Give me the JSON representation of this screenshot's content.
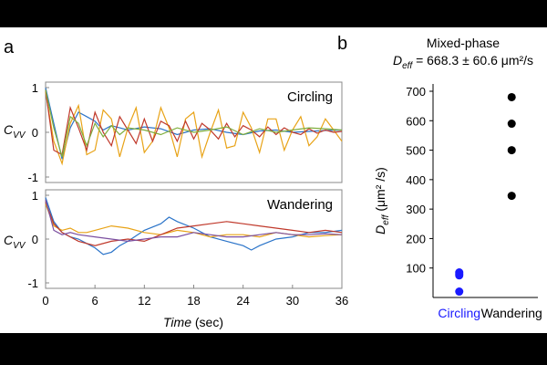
{
  "panels": {
    "a": {
      "label": "a"
    },
    "b": {
      "label": "b"
    }
  },
  "chart_data": [
    {
      "id": "circling",
      "type": "line",
      "title": "",
      "annotation": "Circling",
      "ylabel": "C",
      "ylabel_sub": "VV",
      "xlim": [
        0,
        36
      ],
      "ylim": [
        -1,
        1
      ],
      "yticks": [
        1,
        0,
        -1
      ],
      "series": [
        {
          "name": "blue",
          "color": "#2b74c9",
          "x": [
            0,
            1,
            2,
            3,
            4,
            5,
            6,
            7,
            8,
            9,
            10,
            12,
            14,
            16,
            18,
            20,
            22,
            24,
            26,
            28,
            30,
            32,
            34,
            36
          ],
          "y": [
            1,
            0.2,
            -0.6,
            0.1,
            0.45,
            0.35,
            0.25,
            0.05,
            0.15,
            0.1,
            0.05,
            0.12,
            0.08,
            -0.05,
            0.05,
            0.08,
            0.0,
            -0.05,
            0.03,
            0.05,
            0.0,
            0.02,
            0.04,
            0.05
          ]
        },
        {
          "name": "orange",
          "color": "#e8a317",
          "x": [
            0,
            1,
            2,
            3,
            4,
            5,
            6,
            7,
            8,
            9,
            10,
            11,
            12,
            13,
            14,
            15,
            16,
            17,
            18,
            19,
            20,
            21,
            22,
            23,
            24,
            25,
            26,
            27,
            28,
            29,
            30,
            31,
            32,
            33,
            34,
            35,
            36
          ],
          "y": [
            0.9,
            -0.2,
            -0.7,
            0.2,
            0.6,
            -0.5,
            -0.4,
            0.5,
            0.3,
            -0.55,
            0.1,
            0.55,
            -0.45,
            -0.2,
            0.55,
            0.1,
            -0.55,
            0.3,
            0.45,
            -0.55,
            0.0,
            0.5,
            -0.35,
            -0.3,
            0.45,
            0.1,
            -0.45,
            0.3,
            0.3,
            -0.4,
            0.05,
            0.35,
            -0.3,
            -0.1,
            0.3,
            0.05,
            -0.2
          ]
        },
        {
          "name": "red",
          "color": "#c0392b",
          "x": [
            0,
            1,
            2,
            3,
            4,
            5,
            6,
            7,
            8,
            9,
            10,
            11,
            12,
            13,
            14,
            15,
            16,
            17,
            18,
            19,
            20,
            21,
            22,
            23,
            24,
            25,
            26,
            27,
            28,
            29,
            30,
            31,
            32,
            33,
            34,
            35,
            36
          ],
          "y": [
            0.95,
            -0.4,
            -0.5,
            0.55,
            0.1,
            -0.4,
            0.45,
            0.0,
            -0.3,
            0.35,
            0.05,
            -0.25,
            0.3,
            -0.2,
            0.25,
            0.15,
            -0.2,
            0.25,
            -0.15,
            0.2,
            0.05,
            -0.15,
            0.2,
            -0.1,
            0.15,
            0.05,
            -0.1,
            0.12,
            -0.05,
            0.1,
            0.0,
            -0.05,
            0.08,
            -0.02,
            0.05,
            0.0,
            0.02
          ]
        },
        {
          "name": "green",
          "color": "#7fae3d",
          "x": [
            0,
            1,
            2,
            3,
            4,
            5,
            6,
            7,
            8,
            9,
            10,
            12,
            14,
            16,
            18,
            20,
            22,
            24,
            26,
            28,
            30,
            32,
            34,
            36
          ],
          "y": [
            0.95,
            0.1,
            -0.55,
            0.35,
            0.2,
            -0.3,
            0.2,
            -0.1,
            0.15,
            -0.05,
            0.1,
            0.05,
            -0.05,
            0.1,
            0.0,
            0.05,
            0.12,
            -0.05,
            0.08,
            0.0,
            0.05,
            0.1,
            0.08,
            0.05
          ]
        }
      ]
    },
    {
      "id": "wandering",
      "type": "line",
      "title": "",
      "annotation": "Wandering",
      "ylabel": "C",
      "ylabel_sub": "VV",
      "xlabel": "Time",
      "xlabel_unit": " (sec)",
      "xlim": [
        0,
        36
      ],
      "ylim": [
        -1,
        1
      ],
      "yticks": [
        1,
        0,
        -1
      ],
      "xticks": [
        0,
        6,
        12,
        18,
        24,
        30,
        36
      ],
      "series": [
        {
          "name": "blue",
          "color": "#2b74c9",
          "x": [
            0,
            1,
            2,
            3,
            4,
            5,
            6,
            7,
            8,
            9,
            10,
            12,
            14,
            15,
            16,
            18,
            20,
            22,
            24,
            25,
            26,
            28,
            30,
            32,
            34,
            36
          ],
          "y": [
            0.95,
            0.4,
            0.15,
            0.05,
            0.0,
            -0.1,
            -0.2,
            -0.35,
            -0.3,
            -0.15,
            -0.05,
            0.2,
            0.35,
            0.5,
            0.4,
            0.25,
            0.05,
            -0.05,
            -0.15,
            -0.25,
            -0.15,
            0.0,
            0.05,
            0.15,
            0.15,
            0.2
          ]
        },
        {
          "name": "orange",
          "color": "#e8a317",
          "x": [
            0,
            1,
            2,
            3,
            4,
            5,
            6,
            8,
            10,
            12,
            14,
            16,
            18,
            20,
            22,
            24,
            26,
            28,
            30,
            32,
            34,
            36
          ],
          "y": [
            0.8,
            0.3,
            0.2,
            0.25,
            0.15,
            0.15,
            0.2,
            0.3,
            0.25,
            0.15,
            0.1,
            0.2,
            0.15,
            0.05,
            0.1,
            0.1,
            0.05,
            0.15,
            0.1,
            0.05,
            0.08,
            0.1
          ]
        },
        {
          "name": "red",
          "color": "#c0392b",
          "x": [
            0,
            1,
            2,
            3,
            4,
            6,
            8,
            10,
            12,
            14,
            16,
            18,
            20,
            22,
            24,
            26,
            28,
            30,
            32,
            34,
            36
          ],
          "y": [
            0.85,
            0.35,
            0.15,
            0.05,
            -0.05,
            -0.15,
            -0.05,
            0.0,
            -0.05,
            0.1,
            0.25,
            0.3,
            0.35,
            0.4,
            0.35,
            0.3,
            0.25,
            0.2,
            0.15,
            0.2,
            0.15
          ]
        },
        {
          "name": "purple",
          "color": "#7b4fa0",
          "x": [
            0,
            1,
            2,
            3,
            4,
            6,
            8,
            10,
            12,
            14,
            16,
            18,
            20,
            22,
            24,
            26,
            28,
            30,
            32,
            34,
            36
          ],
          "y": [
            0.9,
            0.2,
            0.1,
            0.15,
            0.1,
            0.05,
            0.0,
            -0.05,
            0.0,
            0.05,
            0.05,
            0.15,
            0.1,
            0.05,
            0.05,
            0.1,
            0.15,
            0.1,
            0.1,
            0.12,
            0.1
          ]
        }
      ]
    },
    {
      "id": "deff",
      "type": "scatter",
      "title": "Mixed-phase",
      "annotation_prefix": "D",
      "annotation_sub": "eff",
      "annotation_value": " = 668.3 ± 60.6 μm²/s",
      "ylabel": "D",
      "ylabel_sub": "eff",
      "ylabel_unit": " (μm² /s)",
      "ylim": [
        0,
        700
      ],
      "yticks": [
        100,
        200,
        300,
        400,
        500,
        600,
        700
      ],
      "categories": [
        "Circling",
        "Wandering"
      ],
      "category_colors": [
        "#1a1aff",
        "#000000"
      ],
      "series": [
        {
          "name": "Circling",
          "color": "#1a1aff",
          "values": [
            85,
            80,
            75,
            20
          ]
        },
        {
          "name": "Wandering",
          "color": "#000000",
          "values": [
            680,
            590,
            500,
            345
          ]
        }
      ]
    }
  ]
}
